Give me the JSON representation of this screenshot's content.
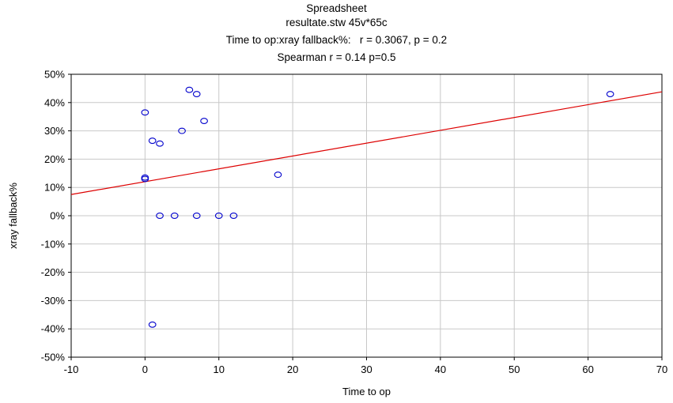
{
  "chart_data": {
    "type": "scatter",
    "title": "Spreadsheet",
    "subtitle": "resultate.stw 45v*65c",
    "annotations": [
      "Time to op:xray fallback%:   r = 0.3067, p = 0.2",
      "Spearman r = 0.14 p=0.5"
    ],
    "xlabel": "Time to op",
    "ylabel": "xray fallback%",
    "xlim": [
      -10,
      70
    ],
    "ylim": [
      -50,
      50
    ],
    "x_ticks": [
      -10,
      0,
      10,
      20,
      30,
      40,
      50,
      60,
      70
    ],
    "y_ticks": [
      -50,
      -40,
      -30,
      -20,
      -10,
      0,
      10,
      20,
      30,
      40,
      50
    ],
    "x_tick_labels": [
      "-10",
      "0",
      "10",
      "20",
      "30",
      "40",
      "50",
      "60",
      "70"
    ],
    "y_tick_labels": [
      "-50%",
      "-40%",
      "-30%",
      "-20%",
      "-10%",
      "0%",
      "10%",
      "20%",
      "30%",
      "40%",
      "50%"
    ],
    "grid": true,
    "points": [
      {
        "x": 0,
        "y": 36.5
      },
      {
        "x": 0,
        "y": 13.5
      },
      {
        "x": 0,
        "y": 13
      },
      {
        "x": 1,
        "y": 26.5
      },
      {
        "x": 1,
        "y": -38.5
      },
      {
        "x": 2,
        "y": 25.5
      },
      {
        "x": 2,
        "y": 0
      },
      {
        "x": 4,
        "y": 0
      },
      {
        "x": 5,
        "y": 30
      },
      {
        "x": 6,
        "y": 44.5
      },
      {
        "x": 7,
        "y": 43
      },
      {
        "x": 7,
        "y": 0
      },
      {
        "x": 8,
        "y": 33.5
      },
      {
        "x": 10,
        "y": 0
      },
      {
        "x": 12,
        "y": 0
      },
      {
        "x": 18,
        "y": 14.5
      },
      {
        "x": 63,
        "y": 43
      }
    ],
    "regression_line": {
      "x": [
        -10,
        70
      ],
      "y": [
        7.5,
        43.8
      ]
    },
    "colors": {
      "points": "#0000cc",
      "line": "#dd0000",
      "grid": "#c8c8c8",
      "frame": "#000000"
    }
  }
}
